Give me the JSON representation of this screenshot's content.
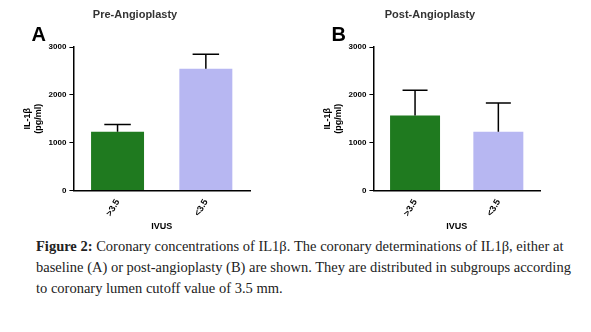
{
  "chart_data": [
    {
      "type": "bar",
      "title": "Pre-Angioplasty",
      "annotation": "A",
      "categories": [
        ">3.5",
        "<3.5"
      ],
      "values": [
        1230,
        2550
      ],
      "errors": [
        150,
        300
      ],
      "colors": [
        "#1f7a1f",
        "#b7b7f2"
      ],
      "xlabel": "IVUS",
      "ylabel": [
        "IL-1β",
        "(pg/ml)"
      ],
      "ylim": [
        0,
        3000
      ],
      "yticks": [
        0,
        1000,
        2000,
        3000
      ],
      "grid": false
    },
    {
      "type": "bar",
      "title": "Post-Angioplasty",
      "annotation": "B",
      "categories": [
        ">3.5",
        "<3.5"
      ],
      "values": [
        1570,
        1230
      ],
      "errors": [
        530,
        600
      ],
      "colors": [
        "#1f7a1f",
        "#b7b7f2"
      ],
      "xlabel": "IVUS",
      "ylabel": [
        "IL-1β",
        "(pg/ml)"
      ],
      "ylim": [
        0,
        3000
      ],
      "yticks": [
        0,
        1000,
        2000,
        3000
      ],
      "grid": false
    }
  ],
  "caption_label": "Figure 2:",
  "caption": "Coronary concentrations of IL1β. The coronary determinations of IL1β, either at baseline (A) or post-angioplasty (B) are shown. They are distributed in subgroups according to coronary lumen cutoff value of 3.5 mm."
}
